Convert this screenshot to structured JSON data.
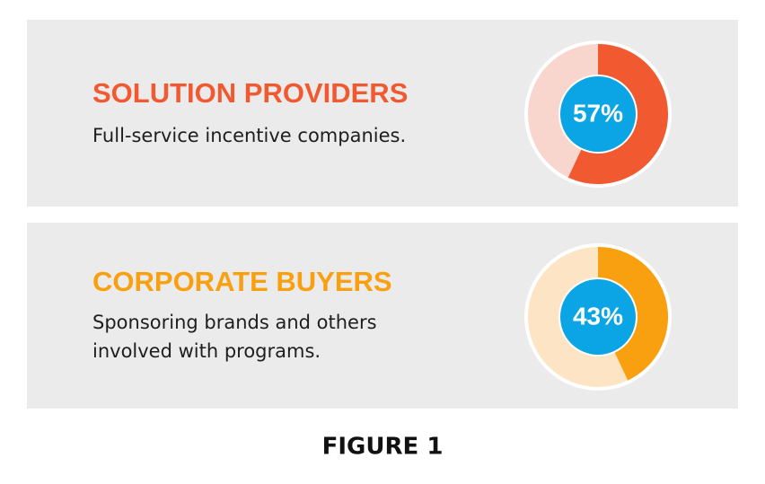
{
  "chart_data": [
    {
      "type": "donut",
      "title": "SOLUTION PROVIDERS",
      "subtitle": [
        "Full-service incentive companies."
      ],
      "values": [
        57
      ],
      "value_labels": [
        "57%"
      ],
      "color": "#f15a30",
      "track_color": "#f9d6cd",
      "center_color": "#0ba5e6"
    },
    {
      "type": "donut",
      "title": "CORPORATE BUYERS",
      "subtitle": [
        "Sponsoring brands and others",
        "involved with programs."
      ],
      "values": [
        43
      ],
      "value_labels": [
        "43%"
      ],
      "color": "#f8a00f",
      "track_color": "#fde4c4",
      "center_color": "#0ba5e6"
    }
  ],
  "caption": "FIGURE 1"
}
